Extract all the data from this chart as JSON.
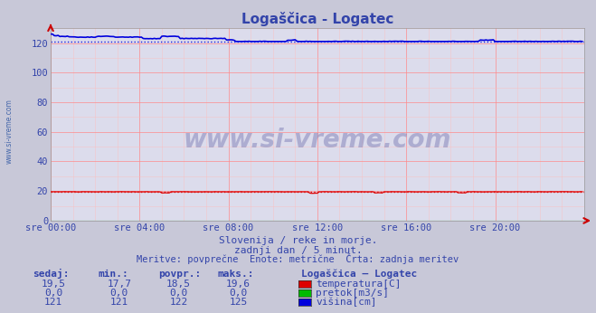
{
  "title": "Logaščica - Logatec",
  "background_color": "#c8c8d8",
  "plot_bg_color": "#dcdcec",
  "grid_color_major": "#ff8888",
  "grid_color_minor": "#ffbbbb",
  "xlim": [
    0,
    288
  ],
  "ylim": [
    0,
    130
  ],
  "yticks": [
    0,
    20,
    40,
    60,
    80,
    100,
    120
  ],
  "xtick_labels": [
    "sre 00:00",
    "sre 04:00",
    "sre 08:00",
    "sre 12:00",
    "sre 16:00",
    "sre 20:00"
  ],
  "xtick_positions": [
    0,
    48,
    96,
    144,
    192,
    240
  ],
  "temp_color": "#dd0000",
  "flow_color": "#00bb00",
  "height_color": "#0000dd",
  "watermark": "www.si-vreme.com",
  "watermark_color": "#8888bb",
  "subtitle1": "Slovenija / reke in morje.",
  "subtitle2": "zadnji dan / 5 minut.",
  "subtitle3": "Meritve: povprečne  Enote: metrične  Črta: zadnja meritev",
  "legend_title": "Logaščica – Logatec",
  "legend_items": [
    {
      "label": "temperatura[C]",
      "color": "#dd0000"
    },
    {
      "label": "pretok[m3/s]",
      "color": "#00bb00"
    },
    {
      "label": "višina[cm]",
      "color": "#0000dd"
    }
  ],
  "table_headers": [
    "sedaj:",
    "min.:",
    "povpr.:",
    "maks.:"
  ],
  "table_data": [
    [
      "19,5",
      "17,7",
      "18,5",
      "19,6"
    ],
    [
      "0,0",
      "0,0",
      "0,0",
      "0,0"
    ],
    [
      "121",
      "121",
      "122",
      "125"
    ]
  ],
  "sidebar_text": "www.si-vreme.com",
  "sidebar_color": "#4466aa",
  "text_color": "#3344aa",
  "n_points": 288
}
